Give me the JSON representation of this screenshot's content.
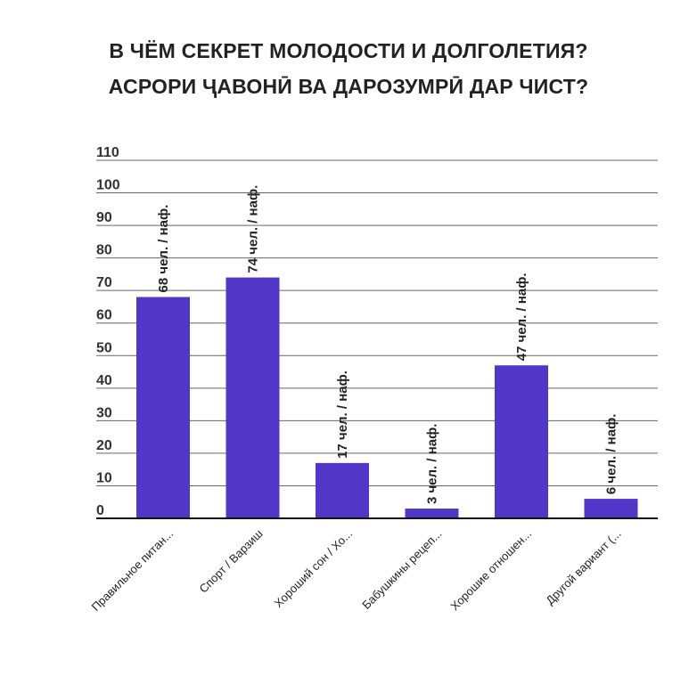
{
  "chart_data": {
    "type": "bar",
    "title_line1": "В ЧЁМ СЕКРЕТ МОЛОДОСТИ И ДОЛГОЛЕТИЯ?",
    "title_line2": "АСРОРИ ҶАВОНӢ ВА ДАРОЗУМРӢ ДАР ЧИСТ?",
    "categories": [
      "Правильное питан...",
      "Спорт / Варзиш",
      "Хороший сон / Хо...",
      "Бабушкины рецеп...",
      "Хорошие отношен...",
      "Другой вариант (..."
    ],
    "values": [
      68,
      74,
      17,
      3,
      47,
      6
    ],
    "data_labels": [
      "68 чел. / наф.",
      "74 чел. / наф.",
      "17 чел. / наф.",
      "3 чел. / наф.",
      "47 чел. / наф.",
      "6 чел. / наф."
    ],
    "yticks": [
      0,
      10,
      20,
      30,
      40,
      50,
      60,
      70,
      80,
      90,
      100,
      110
    ],
    "ylim": [
      0,
      110
    ],
    "xlabel": "",
    "ylabel": "",
    "grid": true,
    "bar_color": "#5236C8"
  }
}
